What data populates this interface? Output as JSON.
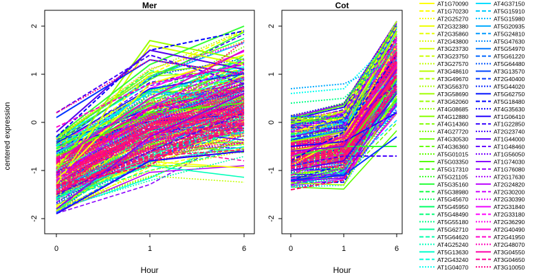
{
  "figure": {
    "y_axis_label": "centered expression"
  },
  "chart_data": [
    {
      "type": "line",
      "title": "Mer",
      "xlabel": "Hour",
      "ylabel": "centered expression",
      "x_ticks": [
        "0",
        "1",
        "6"
      ],
      "y_ticks": [
        -2,
        -1,
        0,
        1,
        2
      ],
      "ylim": [
        -2.15,
        2.15
      ],
      "grid": false,
      "legend": "right, outside plot",
      "series_representative": [
        {
          "name": "AT1G70090",
          "color": "#ffff00",
          "dash": "solid",
          "values": [
            -1.2,
            0.8,
            1.4
          ]
        },
        {
          "name": "AT1G70230",
          "color": "#ffff00",
          "dash": "dashed",
          "values": [
            -0.9,
            1.0,
            1.9
          ]
        },
        {
          "name": "AT2G43800",
          "color": "#d8ff00",
          "dash": "solid",
          "values": [
            -1.3,
            1.6,
            1.2
          ]
        },
        {
          "name": "AT3G58690",
          "color": "#99ff00",
          "dash": "solid",
          "values": [
            -1.0,
            1.7,
            1.3
          ]
        },
        {
          "name": "AT4G36360",
          "color": "#55ff00",
          "dash": "solid",
          "values": [
            -0.7,
            0.2,
            0.4
          ]
        },
        {
          "name": "AT5G03350",
          "color": "#33ff33",
          "dash": "solid",
          "values": [
            -0.3,
            1.2,
            2.0
          ]
        },
        {
          "name": "AT5G45670",
          "color": "#00ff88",
          "dash": "dotted",
          "values": [
            -1.6,
            -0.2,
            0.5
          ]
        },
        {
          "name": "AT5G64620",
          "color": "#00ffee",
          "dash": "dotted",
          "values": [
            -1.0,
            0.0,
            0.9
          ]
        },
        {
          "name": "AT4G25240",
          "color": "#00ddff",
          "dash": "dashed",
          "values": [
            -0.5,
            0.6,
            1.1
          ]
        },
        {
          "name": "AT1G04070",
          "color": "#00aaff",
          "dash": "dotted",
          "values": [
            -1.4,
            -0.4,
            0.3
          ]
        },
        {
          "name": "AT4G37150",
          "color": "#0033ff",
          "dash": "solid",
          "values": [
            0.1,
            1.3,
            1.0
          ]
        },
        {
          "name": "AT5G15910",
          "color": "#0000ff",
          "dash": "dashed",
          "values": [
            -0.3,
            1.5,
            1.9
          ]
        },
        {
          "name": "AT5G24810",
          "color": "#2200ff",
          "dash": "solid",
          "values": [
            -1.9,
            -0.8,
            -0.6
          ]
        },
        {
          "name": "AT5G47630",
          "color": "#4400ff",
          "dash": "dashed",
          "values": [
            0.2,
            1.4,
            0.8
          ]
        },
        {
          "name": "AT3G13570",
          "color": "#5500ee",
          "dash": "solid",
          "values": [
            -0.2,
            1.5,
            1.1
          ]
        },
        {
          "name": "AT4G44020",
          "color": "#6600dd",
          "dash": "dashed",
          "values": [
            -1.5,
            -0.6,
            0.2
          ]
        },
        {
          "name": "AT1G22850",
          "color": "#8800ee",
          "dash": "solid",
          "values": [
            -1.8,
            -0.3,
            0.6
          ]
        },
        {
          "name": "AT4G48460",
          "color": "#aa00ff",
          "dash": "dashed",
          "values": [
            -1.1,
            0.1,
            0.9
          ]
        },
        {
          "name": "AT2G30200",
          "color": "#cc00ff",
          "dash": "dashed",
          "values": [
            -1.2,
            0.3,
            1.3
          ]
        },
        {
          "name": "AT2G31840",
          "color": "#dd00cc",
          "dash": "solid",
          "values": [
            -0.8,
            0.5,
            1.5
          ]
        },
        {
          "name": "AT2G41950",
          "color": "#ff00cc",
          "dash": "dashed",
          "values": [
            -0.1,
            0.8,
            1.2
          ]
        },
        {
          "name": "AT3G04550",
          "color": "#ff0088",
          "dash": "dotted",
          "values": [
            0.2,
            1.3,
            1.0
          ]
        },
        {
          "name": "AT3G04650",
          "color": "#ff0066",
          "dash": "dashed",
          "values": [
            -1.3,
            -0.9,
            0.4
          ]
        },
        {
          "name": "AT3G10050",
          "color": "#ff1a4d",
          "dash": "dotted",
          "values": [
            -1.5,
            0.1,
            1.7
          ]
        }
      ]
    },
    {
      "type": "line",
      "title": "Cot",
      "xlabel": "Hour",
      "ylabel": "",
      "x_ticks": [
        "0",
        "1",
        "6"
      ],
      "y_ticks": [
        -2,
        -1,
        0,
        1,
        2
      ],
      "ylim": [
        -2.15,
        2.15
      ],
      "grid": false,
      "series_representative": [
        {
          "name": "AT1G70090",
          "color": "#ffff00",
          "dash": "solid",
          "values": [
            -0.9,
            -0.3,
            1.6
          ]
        },
        {
          "name": "AT1G70230",
          "color": "#ffff00",
          "dash": "dashed",
          "values": [
            -0.2,
            0.1,
            2.0
          ]
        },
        {
          "name": "AT2G43800",
          "color": "#d8ff00",
          "dash": "solid",
          "values": [
            -0.6,
            -0.4,
            1.2
          ]
        },
        {
          "name": "AT3G58690",
          "color": "#99ff00",
          "dash": "solid",
          "values": [
            -0.4,
            -0.2,
            1.9
          ]
        },
        {
          "name": "AT4G36360",
          "color": "#55ff00",
          "dash": "solid",
          "values": [
            -1.1,
            -0.6,
            0.9
          ]
        },
        {
          "name": "AT5G03350",
          "color": "#33ff33",
          "dash": "solid",
          "values": [
            -0.7,
            -0.5,
            -0.5
          ]
        },
        {
          "name": "AT5G45670",
          "color": "#00ff88",
          "dash": "dotted",
          "values": [
            0.4,
            0.5,
            1.5
          ]
        },
        {
          "name": "AT5G64620",
          "color": "#00ffee",
          "dash": "dotted",
          "values": [
            0.6,
            0.7,
            1.8
          ]
        },
        {
          "name": "AT4G25240",
          "color": "#00ddff",
          "dash": "dashed",
          "values": [
            -0.3,
            0.0,
            1.0
          ]
        },
        {
          "name": "AT1G04070",
          "color": "#00aaff",
          "dash": "dotted",
          "values": [
            0.7,
            0.8,
            1.3
          ]
        },
        {
          "name": "AT4G37150",
          "color": "#0033ff",
          "dash": "solid",
          "values": [
            -1.2,
            -1.1,
            -0.3
          ]
        },
        {
          "name": "AT5G15910",
          "color": "#0000ff",
          "dash": "dashed",
          "values": [
            -0.8,
            -0.2,
            1.4
          ]
        },
        {
          "name": "AT5G24810",
          "color": "#2200ff",
          "dash": "solid",
          "values": [
            -0.5,
            -0.4,
            0.2
          ]
        },
        {
          "name": "AT5G47630",
          "color": "#4400ff",
          "dash": "dashed",
          "values": [
            -0.9,
            -0.7,
            -0.7
          ]
        },
        {
          "name": "AT3G13570",
          "color": "#5500ee",
          "dash": "solid",
          "values": [
            -1.0,
            -0.8,
            0.6
          ]
        },
        {
          "name": "AT4G44020",
          "color": "#6600dd",
          "dash": "dashed",
          "values": [
            -0.3,
            -0.1,
            0.8
          ]
        },
        {
          "name": "AT1G22850",
          "color": "#8800ee",
          "dash": "solid",
          "values": [
            -0.6,
            -0.5,
            1.1
          ]
        },
        {
          "name": "AT4G48460",
          "color": "#aa00ff",
          "dash": "dashed",
          "values": [
            -1.3,
            -1.0,
            0.4
          ]
        },
        {
          "name": "AT2G30200",
          "color": "#cc00ff",
          "dash": "dashed",
          "values": [
            -0.2,
            0.2,
            1.7
          ]
        },
        {
          "name": "AT2G31840",
          "color": "#dd00cc",
          "dash": "solid",
          "values": [
            -0.7,
            -0.3,
            1.2
          ]
        },
        {
          "name": "AT2G41950",
          "color": "#ff00cc",
          "dash": "dashed",
          "values": [
            -1.1,
            -0.6,
            1.6
          ]
        },
        {
          "name": "AT3G04550",
          "color": "#ff0088",
          "dash": "dotted",
          "values": [
            -0.9,
            -0.4,
            1.4
          ]
        },
        {
          "name": "AT3G04650",
          "color": "#ff0066",
          "dash": "dashed",
          "values": [
            -1.4,
            -1.2,
            1.0
          ]
        },
        {
          "name": "AT3G10050",
          "color": "#ff1a4d",
          "dash": "dotted",
          "values": [
            -0.8,
            -0.6,
            1.8
          ]
        }
      ]
    }
  ],
  "legend": {
    "col1": [
      {
        "label": "AT1G70090",
        "color": "#ffff00",
        "dash": "solid"
      },
      {
        "label": "AT1G70230",
        "color": "#ffff00",
        "dash": "dashed"
      },
      {
        "label": "AT2G25270",
        "color": "#f5ff00",
        "dash": "dotted"
      },
      {
        "label": "AT2G32380",
        "color": "#eeff00",
        "dash": "solid"
      },
      {
        "label": "AT2G35860",
        "color": "#e6ff00",
        "dash": "dashed"
      },
      {
        "label": "AT2G43800",
        "color": "#ddff00",
        "dash": "dotted"
      },
      {
        "label": "AT3G23730",
        "color": "#d4ff00",
        "dash": "solid"
      },
      {
        "label": "AT3G23750",
        "color": "#ccff00",
        "dash": "dashed"
      },
      {
        "label": "AT3G27570",
        "color": "#c3ff00",
        "dash": "dotted"
      },
      {
        "label": "AT3G48610",
        "color": "#bbff00",
        "dash": "solid"
      },
      {
        "label": "AT3G49670",
        "color": "#b2ff00",
        "dash": "dashed"
      },
      {
        "label": "AT3G56370",
        "color": "#aaff00",
        "dash": "dotted"
      },
      {
        "label": "AT3G58690",
        "color": "#a1ff00",
        "dash": "solid"
      },
      {
        "label": "AT3G62060",
        "color": "#99ff00",
        "dash": "dashed"
      },
      {
        "label": "AT4G08685",
        "color": "#90ff00",
        "dash": "dotted"
      },
      {
        "label": "AT4G12880",
        "color": "#88ff00",
        "dash": "solid"
      },
      {
        "label": "AT4G14360",
        "color": "#7fff00",
        "dash": "dashed"
      },
      {
        "label": "AT4G27720",
        "color": "#77ff00",
        "dash": "dotted"
      },
      {
        "label": "AT4G30530",
        "color": "#6eff00",
        "dash": "solid"
      },
      {
        "label": "AT4G36360",
        "color": "#66ff00",
        "dash": "dashed"
      },
      {
        "label": "AT5G01015",
        "color": "#5dff00",
        "dash": "dotted"
      },
      {
        "label": "AT5G03350",
        "color": "#55ff00",
        "dash": "solid"
      },
      {
        "label": "AT5G17310",
        "color": "#44ff11",
        "dash": "dashed"
      },
      {
        "label": "AT5G21105",
        "color": "#33ff22",
        "dash": "dotted"
      },
      {
        "label": "AT5G35160",
        "color": "#22ff33",
        "dash": "solid"
      },
      {
        "label": "AT5G38980",
        "color": "#11ff44",
        "dash": "dashed"
      },
      {
        "label": "AT5G45670",
        "color": "#00ff55",
        "dash": "dotted"
      },
      {
        "label": "AT5G45950",
        "color": "#00ff66",
        "dash": "solid"
      },
      {
        "label": "AT5G48490",
        "color": "#00ff77",
        "dash": "dashed"
      },
      {
        "label": "AT5G55180",
        "color": "#00ff88",
        "dash": "dotted"
      },
      {
        "label": "AT5G62710",
        "color": "#00ff99",
        "dash": "solid"
      },
      {
        "label": "AT5G64620",
        "color": "#00ffaa",
        "dash": "dashed"
      },
      {
        "label": "AT4G25240",
        "color": "#00ffbb",
        "dash": "dotted"
      },
      {
        "label": "AT5G13630",
        "color": "#00ffcc",
        "dash": "solid"
      },
      {
        "label": "AT2G43240",
        "color": "#00ffdd",
        "dash": "dashed"
      },
      {
        "label": "AT1G04070",
        "color": "#00ffee",
        "dash": "dotted"
      }
    ],
    "col2": [
      {
        "label": "AT4G37150",
        "color": "#00ddff",
        "dash": "solid"
      },
      {
        "label": "AT5G15910",
        "color": "#00ccff",
        "dash": "dashed"
      },
      {
        "label": "AT5G15980",
        "color": "#00bbff",
        "dash": "dotted"
      },
      {
        "label": "AT5G20935",
        "color": "#00aaff",
        "dash": "solid"
      },
      {
        "label": "AT5G24810",
        "color": "#0099ff",
        "dash": "dashed"
      },
      {
        "label": "AT5G47630",
        "color": "#0088ff",
        "dash": "dotted"
      },
      {
        "label": "AT5G54970",
        "color": "#0077ff",
        "dash": "solid"
      },
      {
        "label": "AT5G61220",
        "color": "#0066ff",
        "dash": "dashed"
      },
      {
        "label": "AT5G64480",
        "color": "#0055ff",
        "dash": "dotted"
      },
      {
        "label": "AT3G13570",
        "color": "#0044ff",
        "dash": "solid"
      },
      {
        "label": "AT2G40400",
        "color": "#0033ff",
        "dash": "dashed"
      },
      {
        "label": "AT5G44020",
        "color": "#0022ff",
        "dash": "dotted"
      },
      {
        "label": "AT5G62750",
        "color": "#0011ff",
        "dash": "solid"
      },
      {
        "label": "AT5G18480",
        "color": "#0000ff",
        "dash": "dashed"
      },
      {
        "label": "AT4G35630",
        "color": "#1100ff",
        "dash": "dotted"
      },
      {
        "label": "AT1G06410",
        "color": "#2200ff",
        "dash": "solid"
      },
      {
        "label": "AT1G22850",
        "color": "#3300ff",
        "dash": "dashed"
      },
      {
        "label": "AT2G23740",
        "color": "#4400ff",
        "dash": "dotted"
      },
      {
        "label": "AT1G44000",
        "color": "#5500ff",
        "dash": "solid"
      },
      {
        "label": "AT1G48460",
        "color": "#6600ff",
        "dash": "dashed"
      },
      {
        "label": "AT1G56050",
        "color": "#7700ff",
        "dash": "dotted"
      },
      {
        "label": "AT1G74030",
        "color": "#8800ff",
        "dash": "solid"
      },
      {
        "label": "AT1G76080",
        "color": "#9900ff",
        "dash": "dashed"
      },
      {
        "label": "AT2G17630",
        "color": "#aa00ff",
        "dash": "dotted"
      },
      {
        "label": "AT2G24820",
        "color": "#bb00ff",
        "dash": "solid"
      },
      {
        "label": "AT2G30200",
        "color": "#cc00ff",
        "dash": "dashed"
      },
      {
        "label": "AT2G30390",
        "color": "#dd00ff",
        "dash": "dotted"
      },
      {
        "label": "AT2G31840",
        "color": "#ee00ff",
        "dash": "solid"
      },
      {
        "label": "AT2G33180",
        "color": "#ff00ff",
        "dash": "dashed"
      },
      {
        "label": "AT2G36290",
        "color": "#ff00ee",
        "dash": "dotted"
      },
      {
        "label": "AT2G40490",
        "color": "#ff00dd",
        "dash": "solid"
      },
      {
        "label": "AT2G41950",
        "color": "#ff00cc",
        "dash": "dashed"
      },
      {
        "label": "AT2G48070",
        "color": "#ff00bb",
        "dash": "dotted"
      },
      {
        "label": "AT3G04550",
        "color": "#ff00aa",
        "dash": "solid"
      },
      {
        "label": "AT3G04650",
        "color": "#ff0099",
        "dash": "dashed"
      },
      {
        "label": "AT3G10050",
        "color": "#ff0088",
        "dash": "dotted"
      }
    ]
  }
}
